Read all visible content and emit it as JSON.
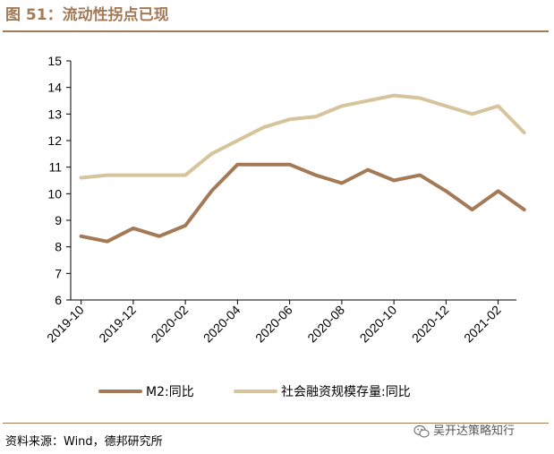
{
  "header": {
    "title": "图 51：流动性拐点已现"
  },
  "footer": {
    "source": "资料来源：Wind，德邦研究所",
    "watermark": "吴开达策略知行"
  },
  "chart_data": {
    "type": "line",
    "x": [
      "2019-10",
      "2019-11",
      "2019-12",
      "2020-01",
      "2020-02",
      "2020-03",
      "2020-04",
      "2020-05",
      "2020-06",
      "2020-07",
      "2020-08",
      "2020-09",
      "2020-10",
      "2020-11",
      "2020-12",
      "2021-01",
      "2021-02",
      "2021-03"
    ],
    "xticks": [
      "2019-10",
      "2019-12",
      "2020-02",
      "2020-04",
      "2020-06",
      "2020-08",
      "2020-10",
      "2020-12",
      "2021-02"
    ],
    "yticks": [
      6,
      7,
      8,
      9,
      10,
      11,
      12,
      13,
      14,
      15
    ],
    "ylim": [
      6,
      15
    ],
    "series": [
      {
        "name": "M2:同比",
        "color": "#a37a55",
        "values": [
          8.4,
          8.2,
          8.7,
          8.4,
          8.8,
          10.1,
          11.1,
          11.1,
          11.1,
          10.7,
          10.4,
          10.9,
          10.5,
          10.7,
          10.1,
          9.4,
          10.1,
          9.4
        ]
      },
      {
        "name": "社会融资规模存量:同比",
        "color": "#d6c49c",
        "values": [
          10.6,
          10.7,
          10.7,
          10.7,
          10.7,
          11.5,
          12.0,
          12.5,
          12.8,
          12.9,
          13.3,
          13.5,
          13.7,
          13.6,
          13.3,
          13.0,
          13.3,
          12.3
        ]
      }
    ],
    "legend_position": "bottom"
  }
}
